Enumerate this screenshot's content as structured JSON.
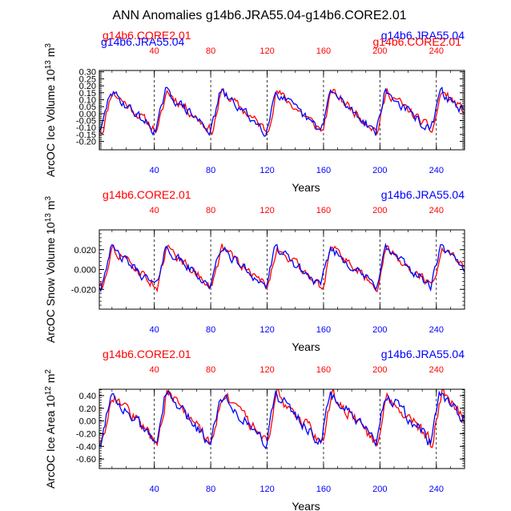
{
  "figure": {
    "title": "ANN Anomalies g14b6.JRA55.04-g14b6.CORE2.01",
    "colors": {
      "red": "#ff0000",
      "blue": "#0000ff",
      "axis": "#000000",
      "grid": "#000000"
    }
  },
  "chart_data": [
    {
      "type": "line",
      "ylabel": "ArcOC Ice Volume 10^13 m^3",
      "xlabel": "Years",
      "top_legend_left": "g14b6.CORE2.01",
      "top_legend_right": "g14b6.JRA55.04",
      "top_legend_left_overlap": "g14b6.JRA55.04",
      "top_legend_right_overlap": "g14b6.CORE2.01",
      "xlim": [
        1,
        260
      ],
      "ylim": [
        -0.26,
        0.31
      ],
      "yticks": [
        -0.2,
        -0.15,
        -0.1,
        -0.05,
        0.0,
        0.05,
        0.1,
        0.15,
        0.2,
        0.25,
        0.3
      ],
      "ytick_labels": [
        "-0.20",
        "-0.15",
        "-0.10",
        "-0.05",
        "0.00",
        "0.05",
        "0.10",
        "0.15",
        "0.20",
        "0.25",
        "0.30"
      ],
      "xticks": [
        40,
        80,
        120,
        160,
        200,
        240
      ],
      "xtick_labels": [
        "40",
        "80",
        "120",
        "160",
        "200",
        "240"
      ],
      "vgrid": [
        40,
        80,
        120,
        160,
        200,
        240
      ],
      "amplitude": 0.22,
      "series": [
        {
          "name": "g14b6.CORE2.01",
          "color": "#ff0000"
        },
        {
          "name": "g14b6.JRA55.04",
          "color": "#0000ff"
        }
      ]
    },
    {
      "type": "line",
      "ylabel": "ArcOC Snow Volume 10^13 m^3",
      "xlabel": "Years",
      "top_legend_left": "g14b6.CORE2.01",
      "top_legend_right": "g14b6.JRA55.04",
      "xlim": [
        1,
        260
      ],
      "ylim": [
        -0.04,
        0.04
      ],
      "yticks": [
        -0.02,
        0.0,
        0.02
      ],
      "ytick_labels": [
        "-0.020",
        "0.000",
        "0.020"
      ],
      "xticks": [
        40,
        80,
        120,
        160,
        200,
        240
      ],
      "xtick_labels": [
        "40",
        "80",
        "120",
        "160",
        "200",
        "240"
      ],
      "vgrid": [
        40,
        80,
        120,
        160,
        200,
        240
      ],
      "amplitude": 0.03,
      "series": [
        {
          "name": "g14b6.CORE2.01",
          "color": "#ff0000"
        },
        {
          "name": "g14b6.JRA55.04",
          "color": "#0000ff"
        }
      ]
    },
    {
      "type": "line",
      "ylabel": "ArcOC Ice Area 10^12 m^2",
      "xlabel": "Years",
      "top_legend_left": "g14b6.CORE2.01",
      "top_legend_right": "g14b6.JRA55.04",
      "xlim": [
        1,
        260
      ],
      "ylim": [
        -0.75,
        0.5
      ],
      "yticks": [
        -0.6,
        -0.4,
        -0.2,
        0.0,
        0.2,
        0.4
      ],
      "ytick_labels": [
        "-0.60",
        "-0.40",
        "-0.20",
        "0.00",
        "0.20",
        "0.40"
      ],
      "xticks": [
        40,
        80,
        120,
        160,
        200,
        240
      ],
      "xtick_labels": [
        "40",
        "80",
        "120",
        "160",
        "200",
        "240"
      ],
      "vgrid": [
        40,
        80,
        120,
        160,
        200,
        240
      ],
      "amplitude": 0.6,
      "series": [
        {
          "name": "g14b6.CORE2.01",
          "color": "#ff0000"
        },
        {
          "name": "g14b6.JRA55.04",
          "color": "#0000ff"
        }
      ]
    }
  ]
}
